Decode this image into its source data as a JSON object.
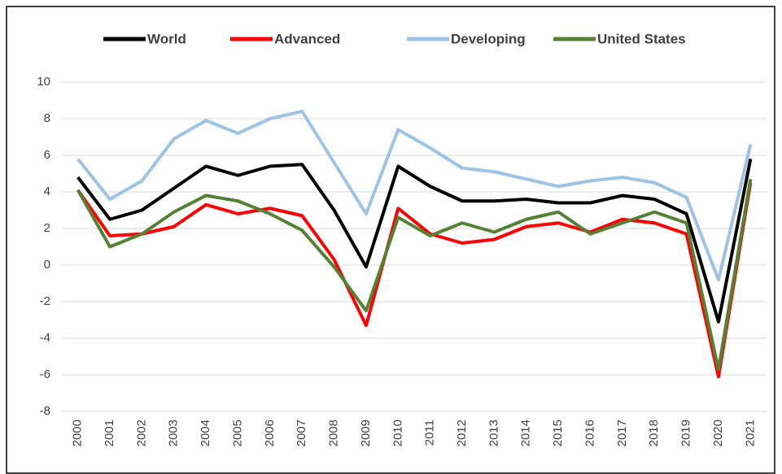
{
  "chart_data": {
    "type": "line",
    "categories": [
      "2000",
      "2001",
      "2002",
      "2003",
      "2004",
      "2005",
      "2006",
      "2007",
      "2008",
      "2009",
      "2010",
      "2011",
      "2012",
      "2013",
      "2014",
      "2015",
      "2016",
      "2017",
      "2018",
      "2019",
      "2020",
      "2021"
    ],
    "series": [
      {
        "name": "World",
        "color": "#000000",
        "values": [
          4.8,
          2.5,
          3.0,
          4.2,
          5.4,
          4.9,
          5.4,
          5.5,
          3.0,
          -0.1,
          5.4,
          4.3,
          3.5,
          3.5,
          3.6,
          3.4,
          3.4,
          3.8,
          3.6,
          2.8,
          -3.1,
          5.8
        ]
      },
      {
        "name": "Advanced",
        "color": "#ff0000",
        "values": [
          4.1,
          1.6,
          1.7,
          2.1,
          3.3,
          2.8,
          3.1,
          2.7,
          0.3,
          -3.3,
          3.1,
          1.7,
          1.2,
          1.4,
          2.1,
          2.3,
          1.8,
          2.5,
          2.3,
          1.7,
          -6.1,
          4.5
        ]
      },
      {
        "name": "Developing",
        "color": "#9dc3e6",
        "values": [
          5.8,
          3.6,
          4.6,
          6.9,
          7.9,
          7.2,
          8.0,
          8.4,
          5.6,
          2.8,
          7.4,
          6.4,
          5.3,
          5.1,
          4.7,
          4.3,
          4.6,
          4.8,
          4.5,
          3.7,
          -0.8,
          6.6
        ]
      },
      {
        "name": "United States",
        "color": "#548235",
        "values": [
          4.1,
          1.0,
          1.7,
          2.9,
          3.8,
          3.5,
          2.8,
          1.9,
          -0.1,
          -2.5,
          2.6,
          1.6,
          2.3,
          1.8,
          2.5,
          2.9,
          1.7,
          2.3,
          2.9,
          2.3,
          -5.7,
          4.7
        ]
      }
    ],
    "ylim": [
      -8,
      10
    ],
    "yticks": [
      -8,
      -6,
      -4,
      -2,
      0,
      2,
      4,
      6,
      8,
      10
    ],
    "grid": true,
    "legend": "top"
  }
}
